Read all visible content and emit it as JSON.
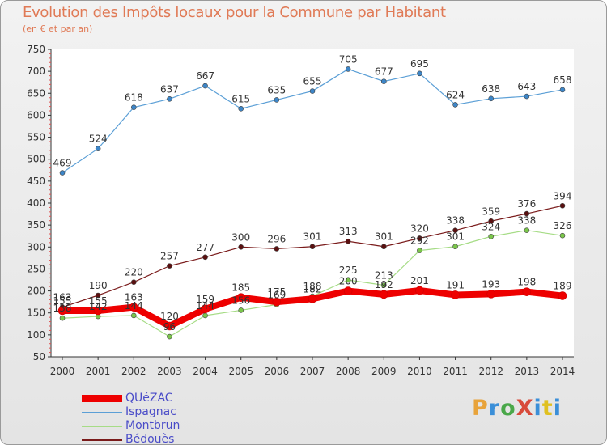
{
  "title": "Evolution des Impôts locaux pour la Commune par Habitant",
  "subtitle": "(en € et par an)",
  "brand": {
    "text": "ProXiti",
    "colors": [
      "#e8a33a",
      "#3b8fd8",
      "#4aa84a",
      "#d84a3a",
      "#3b8fd8",
      "#e0c020",
      "#3b8fd8"
    ]
  },
  "chart_data": {
    "type": "line",
    "x": [
      "2000",
      "2001",
      "2002",
      "2003",
      "2004",
      "2005",
      "2006",
      "2007",
      "2008",
      "2009",
      "2010",
      "2011",
      "2012",
      "2013",
      "2014"
    ],
    "ylim": [
      50,
      750
    ],
    "yticks": [
      50,
      100,
      150,
      200,
      250,
      300,
      350,
      400,
      450,
      500,
      550,
      600,
      650,
      700,
      750
    ],
    "grid": false,
    "legend_position": "bottom-left",
    "series": [
      {
        "name": "Bédouès",
        "color": "#7a1b1b",
        "marker": "#5a1010",
        "width": 1.2,
        "values": [
          163,
          190,
          220,
          257,
          277,
          300,
          296,
          301,
          313,
          301,
          320,
          338,
          359,
          376,
          394
        ]
      },
      {
        "name": "Montbrun",
        "color": "#a6dc86",
        "marker": "#7ac64a",
        "width": 1.2,
        "values": [
          138,
          142,
          144,
          96,
          144,
          156,
          169,
          188,
          225,
          213,
          292,
          301,
          324,
          338,
          326
        ]
      },
      {
        "name": "Ispagnac",
        "color": "#5b9fd6",
        "marker": "#3d86c8",
        "width": 1.2,
        "values": [
          469,
          524,
          618,
          637,
          667,
          615,
          635,
          655,
          705,
          677,
          695,
          624,
          638,
          643,
          658
        ]
      },
      {
        "name": "QUéZAC",
        "color": "#ee0000",
        "marker": "#ee0000",
        "width": 8,
        "values": [
          155,
          155,
          163,
          120,
          159,
          185,
          175,
          182,
          200,
          192,
          201,
          191,
          193,
          198,
          189
        ]
      }
    ],
    "data_labels": {
      "Bédouès": [
        "163",
        "190",
        "220",
        "257",
        "277",
        "300",
        "296",
        "301",
        "313",
        "301",
        "320",
        "338",
        "359",
        "376",
        "394"
      ],
      "Montbrun": [
        "138",
        "142",
        "144",
        "96",
        "144",
        "156",
        "169",
        "188",
        "225",
        "213",
        "292",
        "301",
        "324",
        "338",
        "326"
      ],
      "Ispagnac": [
        "469",
        "524",
        "618",
        "637",
        "667",
        "615",
        "635",
        "655",
        "705",
        "677",
        "695",
        "624",
        "638",
        "643",
        "658"
      ],
      "QUéZAC": [
        "155",
        "155",
        "163",
        "120",
        "159",
        "185",
        "175",
        "182",
        "200",
        "192",
        "201",
        "191",
        "193",
        "198",
        "189"
      ]
    }
  },
  "legend": [
    {
      "label": "QUéZAC",
      "color": "#ee0000"
    },
    {
      "label": "Ispagnac",
      "color": "#5b9fd6"
    },
    {
      "label": "Montbrun",
      "color": "#a6dc86"
    },
    {
      "label": "Bédouès",
      "color": "#7a1b1b"
    }
  ]
}
